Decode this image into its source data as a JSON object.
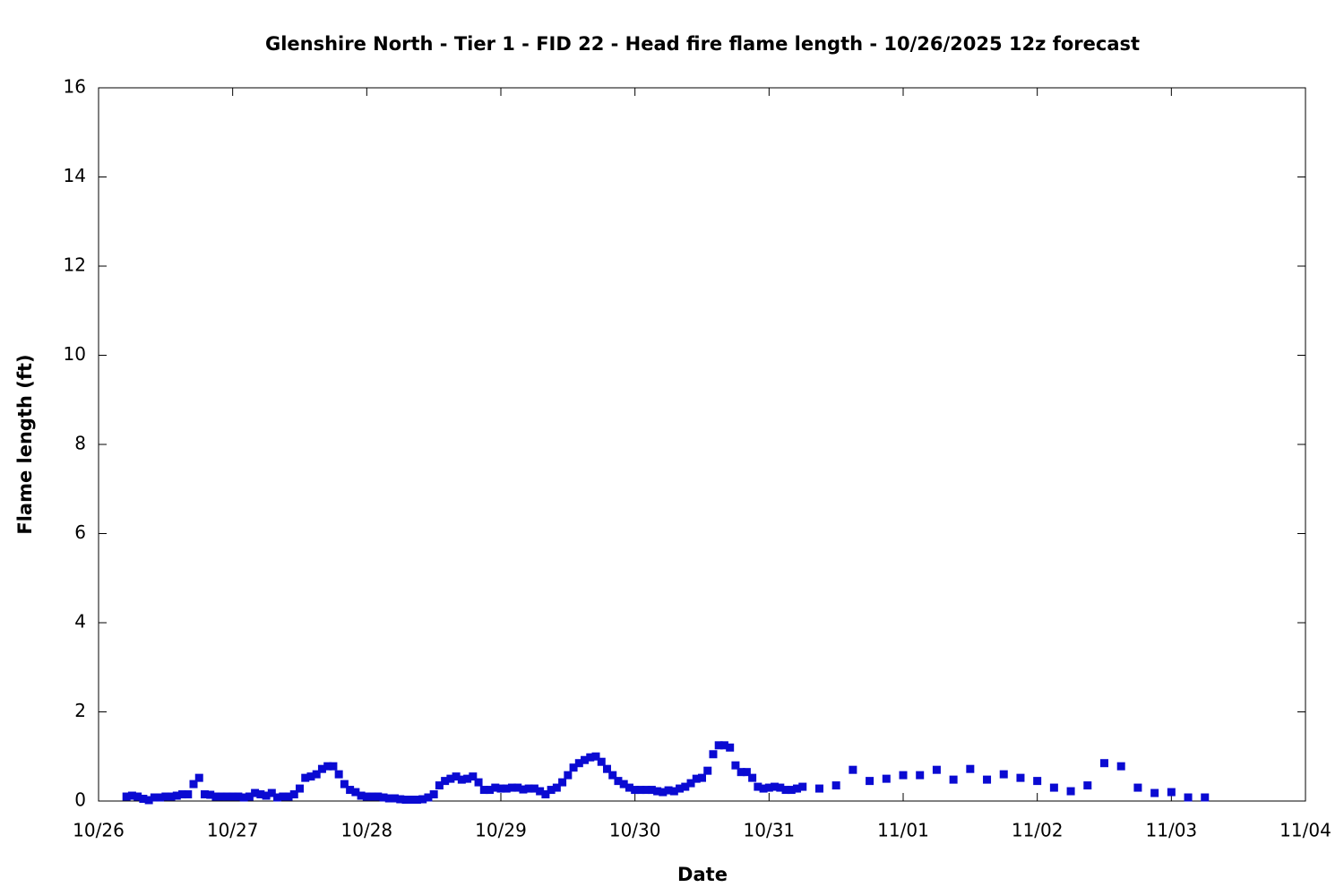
{
  "chart_data": {
    "type": "scatter",
    "title": "Glenshire North - Tier 1 - FID 22 - Head fire flame length - 10/26/2025 12z forecast",
    "xlabel": "Date",
    "ylabel": "Flame length (ft)",
    "xlim": [
      0,
      216
    ],
    "ylim": [
      0,
      16
    ],
    "xticks": [
      {
        "value": 0,
        "label": "10/26"
      },
      {
        "value": 24,
        "label": "10/27"
      },
      {
        "value": 48,
        "label": "10/28"
      },
      {
        "value": 72,
        "label": "10/29"
      },
      {
        "value": 96,
        "label": "10/30"
      },
      {
        "value": 120,
        "label": "10/31"
      },
      {
        "value": 144,
        "label": "11/01"
      },
      {
        "value": 168,
        "label": "11/02"
      },
      {
        "value": 192,
        "label": "11/03"
      },
      {
        "value": 216,
        "label": "11/04"
      }
    ],
    "yticks": [
      0,
      2,
      4,
      6,
      8,
      10,
      12,
      14,
      16
    ],
    "grid": false,
    "series": [
      {
        "color": "#0a0ad2",
        "x": [
          5,
          6,
          7,
          8,
          9,
          10,
          11,
          12,
          13,
          14,
          15,
          16,
          17,
          18,
          19,
          20,
          21,
          22,
          23,
          24,
          25,
          26,
          27,
          28,
          29,
          30,
          31,
          32,
          33,
          34,
          35,
          36,
          37,
          38,
          39,
          40,
          41,
          42,
          43,
          44,
          45,
          46,
          47,
          48,
          49,
          50,
          51,
          52,
          53,
          54,
          55,
          56,
          57,
          58,
          59,
          60,
          61,
          62,
          63,
          64,
          65,
          66,
          67,
          68,
          69,
          70,
          71,
          72,
          73,
          74,
          75,
          76,
          77,
          78,
          79,
          80,
          81,
          82,
          83,
          84,
          85,
          86,
          87,
          88,
          89,
          90,
          91,
          92,
          93,
          94,
          95,
          96,
          97,
          98,
          99,
          100,
          101,
          102,
          103,
          104,
          105,
          106,
          107,
          108,
          109,
          110,
          111,
          112,
          113,
          114,
          115,
          116,
          117,
          118,
          119,
          120,
          121,
          122,
          123,
          124,
          125,
          126,
          129,
          132,
          135,
          138,
          141,
          144,
          147,
          150,
          153,
          156,
          159,
          162,
          165,
          168,
          171,
          174,
          177,
          180,
          183,
          186,
          189,
          192,
          195,
          198
        ],
        "values": [
          0.1,
          0.12,
          0.1,
          0.05,
          0.02,
          0.08,
          0.08,
          0.1,
          0.1,
          0.12,
          0.15,
          0.15,
          0.38,
          0.52,
          0.15,
          0.14,
          0.1,
          0.1,
          0.1,
          0.1,
          0.1,
          0.08,
          0.1,
          0.18,
          0.15,
          0.12,
          0.18,
          0.08,
          0.1,
          0.1,
          0.15,
          0.28,
          0.52,
          0.55,
          0.6,
          0.72,
          0.78,
          0.78,
          0.6,
          0.38,
          0.25,
          0.2,
          0.12,
          0.1,
          0.1,
          0.1,
          0.08,
          0.06,
          0.06,
          0.04,
          0.03,
          0.03,
          0.03,
          0.04,
          0.08,
          0.15,
          0.35,
          0.45,
          0.5,
          0.55,
          0.48,
          0.5,
          0.55,
          0.42,
          0.25,
          0.25,
          0.3,
          0.28,
          0.28,
          0.3,
          0.3,
          0.26,
          0.28,
          0.28,
          0.22,
          0.15,
          0.25,
          0.3,
          0.42,
          0.58,
          0.75,
          0.85,
          0.92,
          0.98,
          1.0,
          0.88,
          0.72,
          0.58,
          0.45,
          0.38,
          0.3,
          0.25,
          0.25,
          0.25,
          0.25,
          0.22,
          0.2,
          0.24,
          0.22,
          0.28,
          0.32,
          0.4,
          0.5,
          0.52,
          0.68,
          1.05,
          1.25,
          1.25,
          1.2,
          0.8,
          0.65,
          0.65,
          0.52,
          0.32,
          0.28,
          0.3,
          0.32,
          0.3,
          0.25,
          0.25,
          0.28,
          0.32,
          0.28,
          0.35,
          0.7,
          0.45,
          0.5,
          0.58,
          0.58,
          0.7,
          0.48,
          0.72,
          0.48,
          0.6,
          0.52,
          0.45,
          0.3,
          0.22,
          0.35,
          0.85,
          0.78,
          0.3,
          0.18,
          0.2,
          0.08,
          0.08
        ]
      }
    ]
  }
}
